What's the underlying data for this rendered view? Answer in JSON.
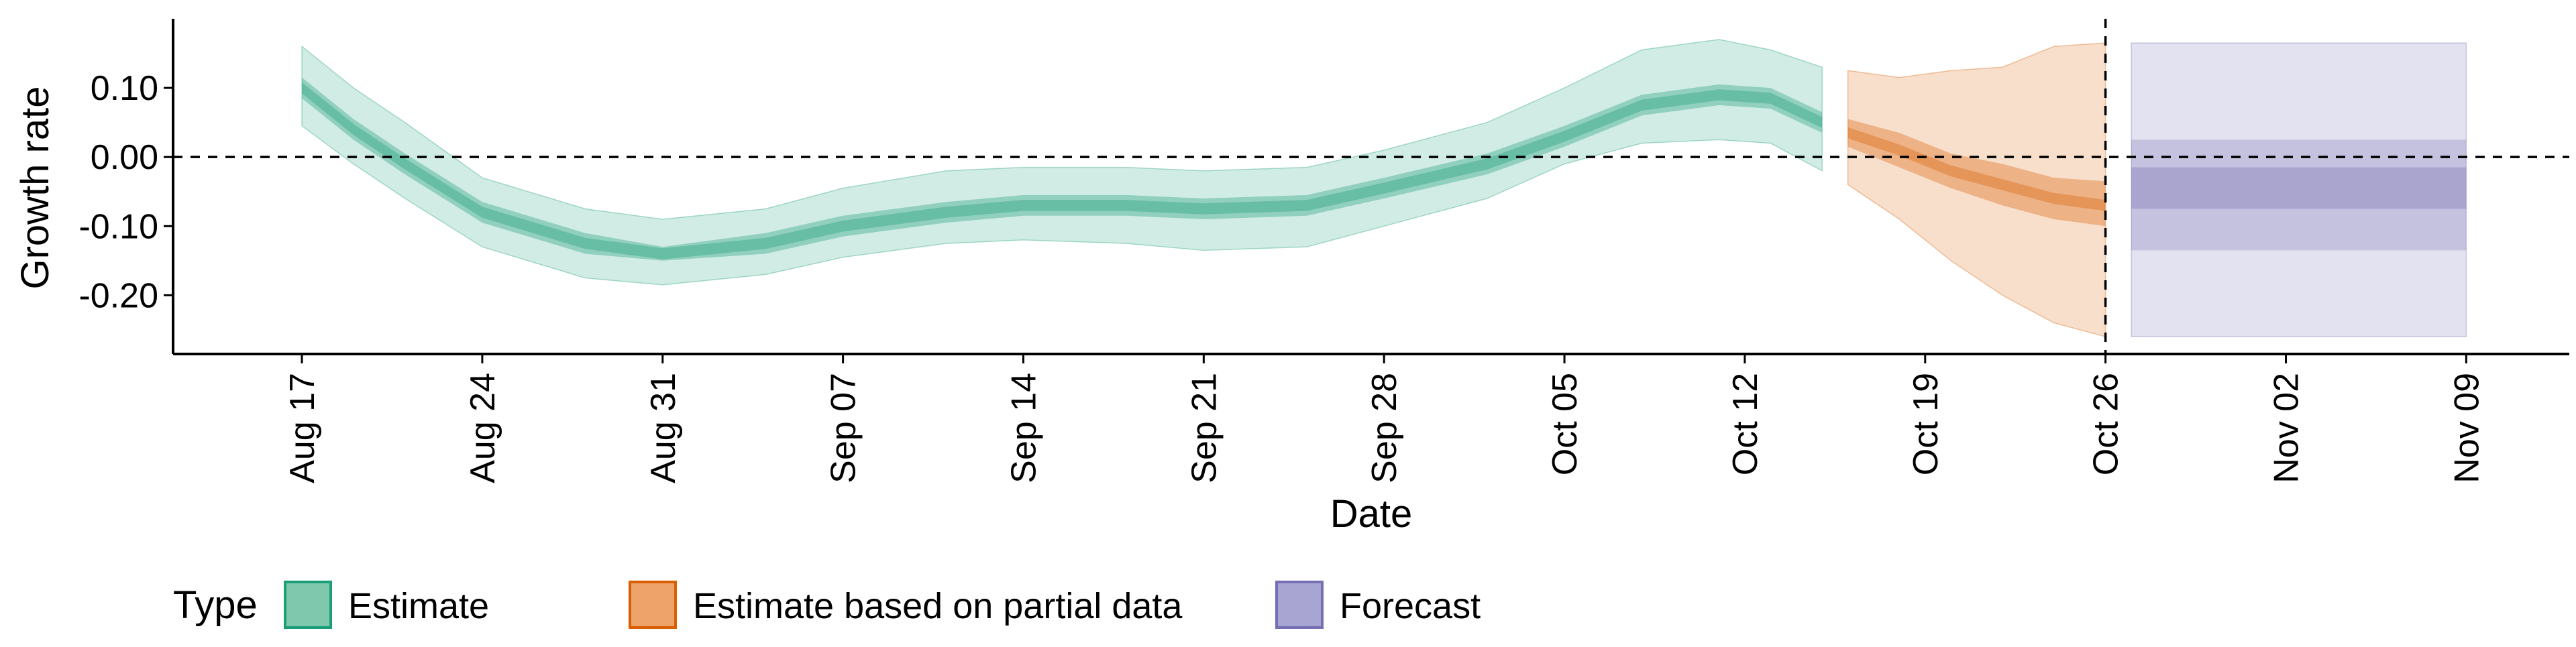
{
  "chart_data": {
    "type": "area",
    "xlabel": "Date",
    "ylabel": "Growth rate",
    "ylim": [
      -0.285,
      0.2
    ],
    "yticks": [
      0.1,
      0.0,
      -0.1,
      -0.2
    ],
    "ytick_labels": [
      "0.10",
      "0.00",
      "-0.10",
      "-0.20"
    ],
    "xlim": [
      "2020-08-12",
      "2020-11-13"
    ],
    "xticks": [
      "2020-08-17",
      "2020-08-24",
      "2020-08-31",
      "2020-09-07",
      "2020-09-14",
      "2020-09-21",
      "2020-09-28",
      "2020-10-05",
      "2020-10-12",
      "2020-10-19",
      "2020-10-26",
      "2020-11-02",
      "2020-11-09"
    ],
    "xtick_labels": [
      "Aug 17",
      "Aug 24",
      "Aug 31",
      "Sep 07",
      "Sep 14",
      "Sep 21",
      "Sep 28",
      "Oct 05",
      "Oct 12",
      "Oct 19",
      "Oct 26",
      "Nov 02",
      "Nov 09"
    ],
    "hline": 0.0,
    "vline": "2020-10-26",
    "grid": false,
    "legend": {
      "title": "Type",
      "position": "bottom",
      "entries": [
        {
          "label": "Estimate",
          "fill": "#7fc8ae",
          "stroke": "#1b9e77"
        },
        {
          "label": "Estimate based on partial data",
          "fill": "#eda36a",
          "stroke": "#d95f02"
        },
        {
          "label": "Forecast",
          "fill": "#a9a5d2",
          "stroke": "#7570b3"
        }
      ]
    },
    "series": [
      {
        "name": "Estimate",
        "color": "#1b9e77",
        "x": [
          "2020-08-17",
          "2020-08-19",
          "2020-08-21",
          "2020-08-24",
          "2020-08-28",
          "2020-08-31",
          "2020-09-04",
          "2020-09-07",
          "2020-09-11",
          "2020-09-14",
          "2020-09-18",
          "2020-09-21",
          "2020-09-25",
          "2020-09-28",
          "2020-10-02",
          "2020-10-05",
          "2020-10-08",
          "2020-10-11",
          "2020-10-13",
          "2020-10-15"
        ],
        "median": [
          0.1,
          0.04,
          -0.01,
          -0.08,
          -0.125,
          -0.14,
          -0.125,
          -0.1,
          -0.08,
          -0.07,
          -0.07,
          -0.075,
          -0.07,
          -0.045,
          -0.01,
          0.03,
          0.075,
          0.09,
          0.085,
          0.05
        ],
        "lower50": [
          0.085,
          0.025,
          -0.025,
          -0.095,
          -0.14,
          -0.15,
          -0.14,
          -0.115,
          -0.095,
          -0.085,
          -0.085,
          -0.09,
          -0.085,
          -0.06,
          -0.025,
          0.015,
          0.06,
          0.075,
          0.07,
          0.035
        ],
        "upper50": [
          0.115,
          0.055,
          0.005,
          -0.065,
          -0.11,
          -0.13,
          -0.11,
          -0.085,
          -0.065,
          -0.055,
          -0.055,
          -0.06,
          -0.055,
          -0.03,
          0.005,
          0.045,
          0.09,
          0.105,
          0.1,
          0.065
        ],
        "lower90": [
          0.045,
          -0.01,
          -0.06,
          -0.13,
          -0.175,
          -0.185,
          -0.17,
          -0.145,
          -0.125,
          -0.12,
          -0.125,
          -0.135,
          -0.13,
          -0.1,
          -0.06,
          -0.01,
          0.02,
          0.025,
          0.02,
          -0.02
        ],
        "upper90": [
          0.16,
          0.1,
          0.05,
          -0.03,
          -0.075,
          -0.09,
          -0.075,
          -0.045,
          -0.02,
          -0.015,
          -0.015,
          -0.02,
          -0.015,
          0.01,
          0.05,
          0.1,
          0.155,
          0.17,
          0.155,
          0.13
        ]
      },
      {
        "name": "Estimate based on partial data",
        "color": "#d95f02",
        "x": [
          "2020-10-16",
          "2020-10-18",
          "2020-10-20",
          "2020-10-22",
          "2020-10-24",
          "2020-10-26"
        ],
        "median": [
          0.035,
          0.01,
          -0.02,
          -0.04,
          -0.06,
          -0.07
        ],
        "lower50": [
          0.015,
          -0.015,
          -0.045,
          -0.07,
          -0.09,
          -0.1
        ],
        "upper50": [
          0.055,
          0.035,
          0.005,
          -0.01,
          -0.03,
          -0.035
        ],
        "lower90": [
          -0.04,
          -0.09,
          -0.15,
          -0.2,
          -0.24,
          -0.26
        ],
        "upper90": [
          0.125,
          0.115,
          0.125,
          0.13,
          0.16,
          0.165
        ]
      },
      {
        "name": "Forecast",
        "color": "#7570b3",
        "x": [
          "2020-10-27",
          "2020-11-09"
        ],
        "median": [
          -0.045,
          -0.045
        ],
        "lower50": [
          -0.075,
          -0.075
        ],
        "upper50": [
          -0.015,
          -0.015
        ],
        "lower20": [
          -0.135,
          -0.135
        ],
        "upper20": [
          0.025,
          0.025
        ],
        "lower90": [
          -0.26,
          -0.26
        ],
        "upper90": [
          0.165,
          0.165
        ]
      }
    ]
  }
}
